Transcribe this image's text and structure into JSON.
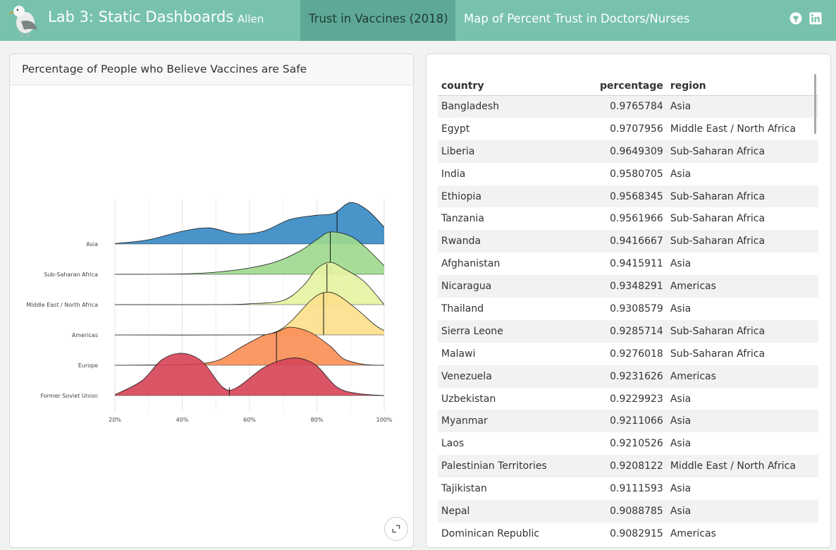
{
  "header": {
    "title": "Lab 3: Static Dashboards",
    "author": "Allen",
    "tabs": [
      {
        "label": "Trust in Vaccines (2018)",
        "active": true
      },
      {
        "label": "Map of Percent Trust in Doctors/Nurses",
        "active": false
      }
    ],
    "icons": [
      "github-icon",
      "linkedin-icon"
    ]
  },
  "chart_card": {
    "title": "Percentage of People who Believe Vaccines are Safe"
  },
  "table": {
    "columns": [
      "country",
      "percentage",
      "region"
    ],
    "rows": [
      [
        "Bangladesh",
        "0.9765784",
        "Asia"
      ],
      [
        "Egypt",
        "0.9707956",
        "Middle East / North Africa"
      ],
      [
        "Liberia",
        "0.9649309",
        "Sub-Saharan Africa"
      ],
      [
        "India",
        "0.9580705",
        "Asia"
      ],
      [
        "Ethiopia",
        "0.9568345",
        "Sub-Saharan Africa"
      ],
      [
        "Tanzania",
        "0.9561966",
        "Sub-Saharan Africa"
      ],
      [
        "Rwanda",
        "0.9416667",
        "Sub-Saharan Africa"
      ],
      [
        "Afghanistan",
        "0.9415911",
        "Asia"
      ],
      [
        "Nicaragua",
        "0.9348291",
        "Americas"
      ],
      [
        "Thailand",
        "0.9308579",
        "Asia"
      ],
      [
        "Sierra Leone",
        "0.9285714",
        "Sub-Saharan Africa"
      ],
      [
        "Malawi",
        "0.9276018",
        "Sub-Saharan Africa"
      ],
      [
        "Venezuela",
        "0.9231626",
        "Americas"
      ],
      [
        "Uzbekistan",
        "0.9229923",
        "Asia"
      ],
      [
        "Myanmar",
        "0.9211066",
        "Asia"
      ],
      [
        "Laos",
        "0.9210526",
        "Asia"
      ],
      [
        "Palestinian Territories",
        "0.9208122",
        "Middle East / North Africa"
      ],
      [
        "Tajikistan",
        "0.9111593",
        "Asia"
      ],
      [
        "Nepal",
        "0.9088785",
        "Asia"
      ],
      [
        "Dominican Republic",
        "0.9082915",
        "Americas"
      ]
    ]
  },
  "chart_data": {
    "type": "area",
    "subtype": "ridgeline",
    "title": "Percentage of People who Believe Vaccines are Safe",
    "xlabel": "",
    "ylabel": "",
    "x_ticks": [
      "20%",
      "40%",
      "60%",
      "80%",
      "100%"
    ],
    "xlim": [
      0.2,
      1.0
    ],
    "grid": true,
    "series": [
      {
        "name": "Asia",
        "color": "#3a8bc4",
        "median": 0.86,
        "curve": [
          [
            0.2,
            0.01
          ],
          [
            0.3,
            0.1
          ],
          [
            0.4,
            0.3
          ],
          [
            0.48,
            0.38
          ],
          [
            0.56,
            0.24
          ],
          [
            0.64,
            0.3
          ],
          [
            0.72,
            0.58
          ],
          [
            0.8,
            0.68
          ],
          [
            0.85,
            0.72
          ],
          [
            0.9,
            0.98
          ],
          [
            0.95,
            0.8
          ],
          [
            1.0,
            0.4
          ]
        ]
      },
      {
        "name": "Sub-Saharan Africa",
        "color": "#9ed98e",
        "median": 0.84,
        "curve": [
          [
            0.2,
            0.0
          ],
          [
            0.4,
            0.01
          ],
          [
            0.5,
            0.05
          ],
          [
            0.6,
            0.15
          ],
          [
            0.68,
            0.3
          ],
          [
            0.75,
            0.55
          ],
          [
            0.8,
            0.82
          ],
          [
            0.84,
            1.0
          ],
          [
            0.9,
            0.9
          ],
          [
            0.95,
            0.6
          ],
          [
            1.0,
            0.2
          ]
        ]
      },
      {
        "name": "Middle East / North Africa",
        "color": "#e5f3a2",
        "median": 0.83,
        "curve": [
          [
            0.2,
            0.0
          ],
          [
            0.5,
            0.0
          ],
          [
            0.6,
            0.02
          ],
          [
            0.7,
            0.1
          ],
          [
            0.76,
            0.45
          ],
          [
            0.8,
            0.85
          ],
          [
            0.84,
            1.0
          ],
          [
            0.88,
            0.85
          ],
          [
            0.94,
            0.55
          ],
          [
            1.0,
            0.0
          ]
        ]
      },
      {
        "name": "Americas",
        "color": "#fddf8c",
        "median": 0.82,
        "curve": [
          [
            0.2,
            0.0
          ],
          [
            0.6,
            0.0
          ],
          [
            0.67,
            0.05
          ],
          [
            0.72,
            0.3
          ],
          [
            0.78,
            0.8
          ],
          [
            0.82,
            1.0
          ],
          [
            0.86,
            0.95
          ],
          [
            0.92,
            0.6
          ],
          [
            0.97,
            0.25
          ],
          [
            1.0,
            0.1
          ]
        ]
      },
      {
        "name": "Europe",
        "color": "#fb9058",
        "median": 0.68,
        "curve": [
          [
            0.2,
            0.0
          ],
          [
            0.4,
            0.02
          ],
          [
            0.5,
            0.1
          ],
          [
            0.58,
            0.45
          ],
          [
            0.64,
            0.7
          ],
          [
            0.68,
            0.78
          ],
          [
            0.72,
            0.9
          ],
          [
            0.78,
            0.78
          ],
          [
            0.84,
            0.45
          ],
          [
            0.88,
            0.15
          ],
          [
            0.94,
            0.02
          ],
          [
            1.0,
            0.0
          ]
        ]
      },
      {
        "name": "Former Soviet Union",
        "color": "#d74659",
        "median": 0.54,
        "curve": [
          [
            0.2,
            0.02
          ],
          [
            0.28,
            0.35
          ],
          [
            0.34,
            0.85
          ],
          [
            0.4,
            1.0
          ],
          [
            0.46,
            0.8
          ],
          [
            0.52,
            0.2
          ],
          [
            0.56,
            0.18
          ],
          [
            0.64,
            0.65
          ],
          [
            0.7,
            0.85
          ],
          [
            0.75,
            0.88
          ],
          [
            0.8,
            0.7
          ],
          [
            0.86,
            0.2
          ],
          [
            0.92,
            0.05
          ],
          [
            1.0,
            0.0
          ]
        ]
      }
    ]
  }
}
